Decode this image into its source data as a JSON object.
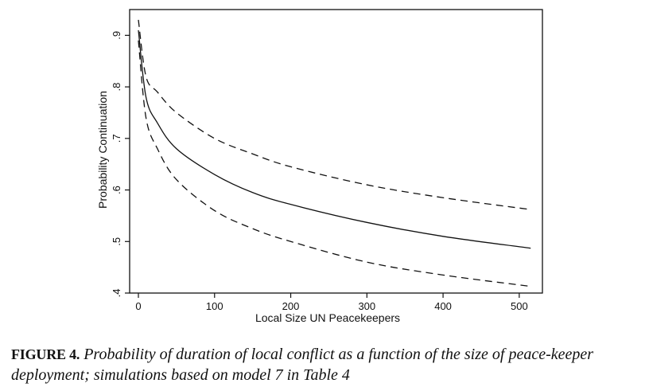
{
  "caption": {
    "label": "FIGURE 4.",
    "text": "Probability of duration of local conflict as a function of the size of peace-keeper deployment; simulations based on model 7 in Table 4"
  },
  "chart_data": {
    "type": "line",
    "title": "",
    "xlabel": "Local Size UN Peacekeepers",
    "ylabel": "Probability Continuation",
    "xlim": [
      0,
      520
    ],
    "ylim": [
      0.4,
      0.95
    ],
    "xticks": [
      0,
      100,
      200,
      300,
      400,
      500
    ],
    "xtick_labels": [
      "0",
      "100",
      "200",
      "300",
      "400",
      "500"
    ],
    "yticks": [
      0.4,
      0.5,
      0.6,
      0.7,
      0.8,
      0.9
    ],
    "ytick_labels": [
      ".4",
      ".5",
      ".6",
      ".7",
      ".8",
      ".9"
    ],
    "grid": false,
    "series": [
      {
        "style": "dashed",
        "x": [
          0,
          10,
          25,
          50,
          100,
          150,
          200,
          300,
          400,
          515
        ],
        "y": [
          0.93,
          0.82,
          0.79,
          0.75,
          0.7,
          0.67,
          0.645,
          0.61,
          0.585,
          0.562
        ]
      },
      {
        "style": "solid",
        "x": [
          0,
          10,
          25,
          50,
          100,
          150,
          200,
          300,
          400,
          515
        ],
        "y": [
          0.91,
          0.78,
          0.73,
          0.68,
          0.63,
          0.595,
          0.572,
          0.537,
          0.51,
          0.487
        ]
      },
      {
        "style": "dashed",
        "x": [
          0,
          10,
          25,
          50,
          100,
          150,
          200,
          300,
          400,
          515
        ],
        "y": [
          0.89,
          0.74,
          0.68,
          0.62,
          0.56,
          0.525,
          0.5,
          0.46,
          0.435,
          0.413
        ]
      }
    ]
  }
}
